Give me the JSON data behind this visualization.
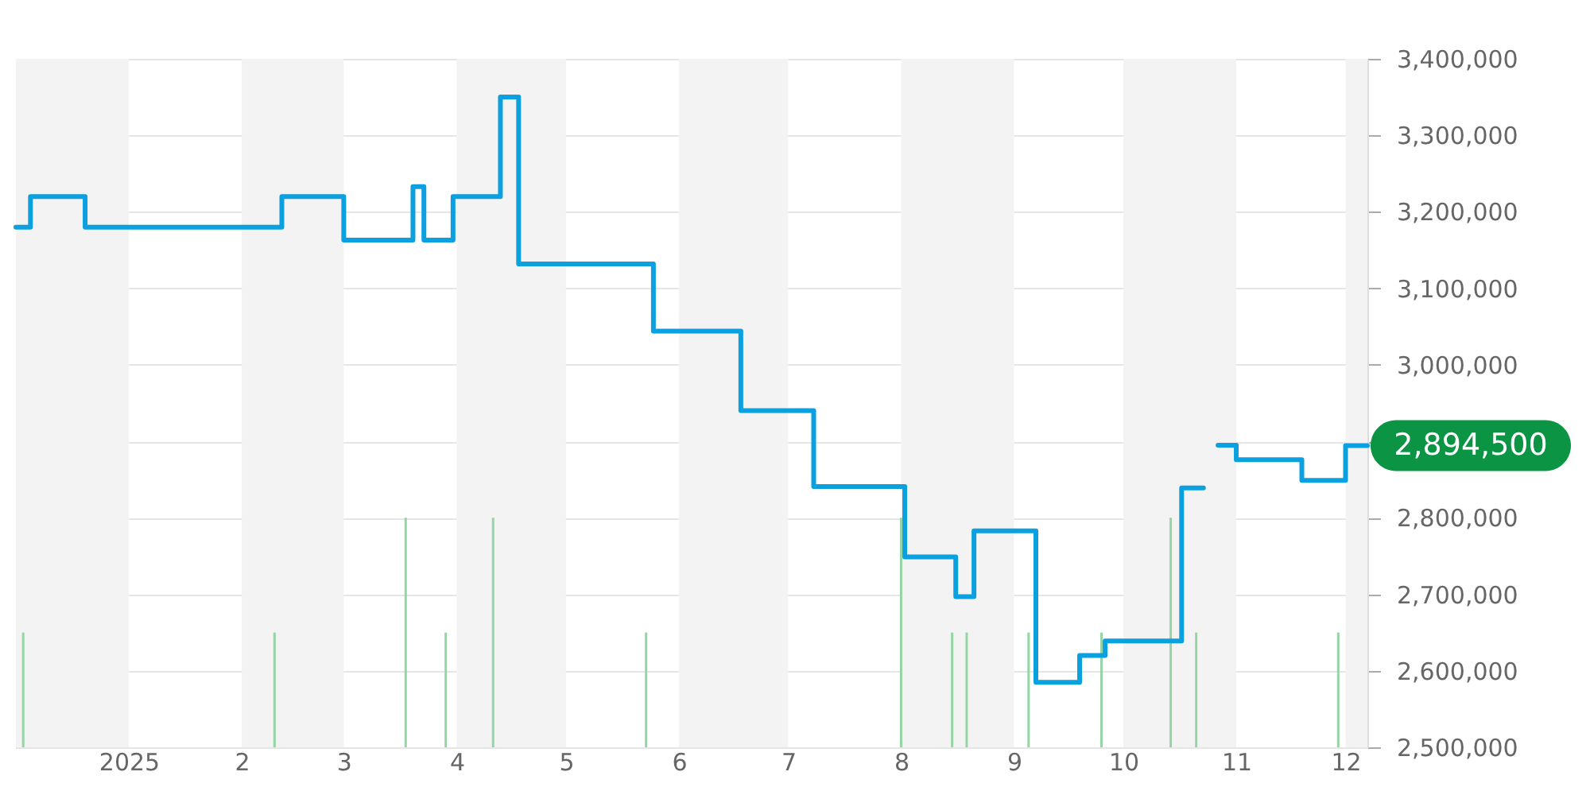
{
  "chart_data": {
    "type": "step",
    "xlim": [
      "2024-12-01",
      "2025-12-07"
    ],
    "xticks": [
      {
        "value": "2025-01-01",
        "label": "2025"
      },
      {
        "value": "2025-02-01",
        "label": "2"
      },
      {
        "value": "2025-03-01",
        "label": "3"
      },
      {
        "value": "2025-04-01",
        "label": "4"
      },
      {
        "value": "2025-05-01",
        "label": "5"
      },
      {
        "value": "2025-06-01",
        "label": "6"
      },
      {
        "value": "2025-07-01",
        "label": "7"
      },
      {
        "value": "2025-08-01",
        "label": "8"
      },
      {
        "value": "2025-09-01",
        "label": "9"
      },
      {
        "value": "2025-10-01",
        "label": "10"
      },
      {
        "value": "2025-11-01",
        "label": "11"
      },
      {
        "value": "2025-12-01",
        "label": "12"
      }
    ],
    "ylim": [
      2500000,
      3400000
    ],
    "yticks": [
      {
        "value": 2500000,
        "label": "2,500,000"
      },
      {
        "value": 2600000,
        "label": "2,600,000"
      },
      {
        "value": 2700000,
        "label": "2,700,000"
      },
      {
        "value": 2800000,
        "label": "2,800,000"
      },
      {
        "value": 2900000,
        "label": null
      },
      {
        "value": 3000000,
        "label": "3,000,000"
      },
      {
        "value": 3100000,
        "label": "3,100,000"
      },
      {
        "value": 3200000,
        "label": "3,200,000"
      },
      {
        "value": 3300000,
        "label": "3,300,000"
      },
      {
        "value": 3400000,
        "label": "3,400,000"
      }
    ],
    "grid": "y",
    "marker": "none",
    "line_style": "solid",
    "series": [
      {
        "type": "bar",
        "color": "#95d5a5",
        "x": [
          "2024-12-03",
          "2025-02-10",
          "2025-03-18",
          "2025-03-29",
          "2025-04-11",
          "2025-05-23",
          "2025-08-01",
          "2025-08-15",
          "2025-08-19",
          "2025-09-05",
          "2025-09-25",
          "2025-10-14",
          "2025-10-21",
          "2025-11-29"
        ],
        "values": [
          2650000,
          2650000,
          2800000,
          2650000,
          2800000,
          2650000,
          2800000,
          2650000,
          2650000,
          2650000,
          2650000,
          2800000,
          2650000,
          2650000
        ]
      },
      {
        "color": "#0ba0e0",
        "x": [
          "2024-12-01",
          "2024-12-05",
          "2024-12-20",
          "2025-02-12",
          "2025-03-01",
          "2025-03-20",
          "2025-03-23",
          "2025-03-31",
          "2025-04-13",
          "2025-04-18",
          "2025-05-25",
          "2025-06-18",
          "2025-07-08",
          "2025-08-02",
          "2025-08-16",
          "2025-08-21",
          "2025-09-07",
          "2025-09-19",
          "2025-09-26",
          "2025-10-17",
          "2025-10-23",
          "2025-10-25",
          "2025-10-27",
          "2025-11-01",
          "2025-11-19",
          "2025-12-01",
          "2025-12-07"
        ],
        "values": [
          3180000,
          3220000,
          3180000,
          3220000,
          3163000,
          3233000,
          3163000,
          3220000,
          3350000,
          3132000,
          3044000,
          2940000,
          2841000,
          2749000,
          2697000,
          2783000,
          2585000,
          2620000,
          2639000,
          2839000,
          2839000,
          null,
          2895000,
          2876000,
          2849000,
          2894500,
          2894500
        ]
      }
    ],
    "bands": [
      {
        "axis": "x",
        "from": "2024-12-01",
        "to": "2025-01-01",
        "color": "#f3f3f3"
      },
      {
        "axis": "x",
        "from": "2025-02-01",
        "to": "2025-03-01",
        "color": "#f3f3f3"
      },
      {
        "axis": "x",
        "from": "2025-04-01",
        "to": "2025-05-01",
        "color": "#f3f3f3"
      },
      {
        "axis": "x",
        "from": "2025-06-01",
        "to": "2025-07-01",
        "color": "#f3f3f3"
      },
      {
        "axis": "x",
        "from": "2025-08-01",
        "to": "2025-09-01",
        "color": "#f3f3f3"
      },
      {
        "axis": "x",
        "from": "2025-10-01",
        "to": "2025-11-01",
        "color": "#f3f3f3"
      },
      {
        "axis": "x",
        "from": "2025-12-01",
        "to": "2025-12-07",
        "color": "#f3f3f3"
      }
    ],
    "annotations": [
      {
        "text": "2,894,500",
        "x": "2025-12-07",
        "y": 2894500
      }
    ]
  }
}
